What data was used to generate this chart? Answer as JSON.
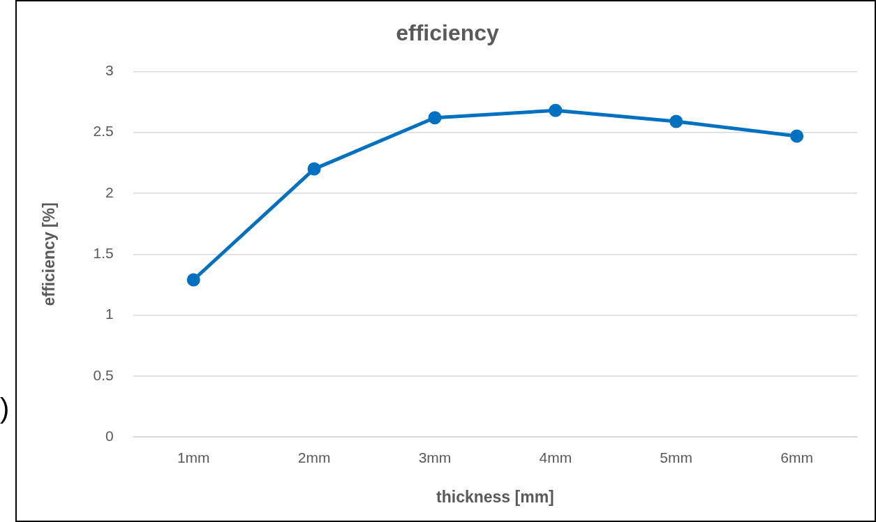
{
  "chart_data": {
    "type": "line",
    "title": "efficiency",
    "xlabel": "thickness [mm]",
    "ylabel": "efficiency [%]",
    "categories": [
      "1mm",
      "2mm",
      "3mm",
      "4mm",
      "5mm",
      "6mm"
    ],
    "series": [
      {
        "color": "#0070c0",
        "values": [
          1.29,
          2.2,
          2.62,
          2.68,
          2.59,
          2.47
        ]
      }
    ],
    "ylim": [
      0,
      3
    ],
    "yticks": [
      0,
      0.5,
      1,
      1.5,
      2,
      2.5,
      3
    ],
    "grid": "y",
    "legend": false,
    "marker": "circle",
    "line_style": "solid",
    "annotations": [
      ")"
    ]
  }
}
